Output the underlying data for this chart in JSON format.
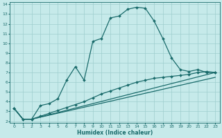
{
  "xlabel": "Humidex (Indice chaleur)",
  "background_color": "#c6eaea",
  "grid_color": "#9ecece",
  "line_color": "#1a6b6b",
  "xlim": [
    -0.5,
    23.5
  ],
  "ylim": [
    1.8,
    14.2
  ],
  "xticks": [
    0,
    1,
    2,
    3,
    4,
    5,
    6,
    7,
    8,
    9,
    10,
    11,
    12,
    13,
    14,
    15,
    16,
    17,
    18,
    19,
    20,
    21,
    22,
    23
  ],
  "yticks": [
    2,
    3,
    4,
    5,
    6,
    7,
    8,
    9,
    10,
    11,
    12,
    13,
    14
  ],
  "curve1_x": [
    0,
    1,
    2,
    3,
    4,
    5,
    6,
    7,
    8,
    9,
    10,
    11,
    12,
    13,
    14,
    15,
    16,
    17,
    18,
    19,
    20,
    21,
    22,
    23
  ],
  "curve1_y": [
    3.3,
    2.2,
    2.2,
    3.6,
    3.8,
    4.3,
    6.2,
    7.6,
    6.2,
    10.2,
    10.5,
    12.6,
    12.8,
    13.5,
    13.7,
    13.6,
    12.3,
    10.5,
    8.5,
    7.3,
    7.1,
    7.3,
    7.0,
    7.0
  ],
  "curve2_x": [
    0,
    1,
    2,
    3,
    4,
    5,
    6,
    7,
    8,
    9,
    10,
    11,
    12,
    13,
    14,
    15,
    16,
    17,
    18,
    19,
    20,
    21,
    22,
    23
  ],
  "curve2_y": [
    3.3,
    2.2,
    2.2,
    2.5,
    2.8,
    3.1,
    3.4,
    3.7,
    4.0,
    4.4,
    4.8,
    5.1,
    5.4,
    5.7,
    6.0,
    6.2,
    6.4,
    6.5,
    6.6,
    6.7,
    6.8,
    7.0,
    7.1,
    7.0
  ],
  "curve3_x": [
    0,
    1,
    2,
    23
  ],
  "curve3_y": [
    3.3,
    2.2,
    2.2,
    7.0
  ],
  "curve4_x": [
    0,
    1,
    2,
    23
  ],
  "curve4_y": [
    3.3,
    2.2,
    2.2,
    6.5
  ],
  "marker": "D",
  "markersize": 2.0,
  "linewidth": 0.9
}
